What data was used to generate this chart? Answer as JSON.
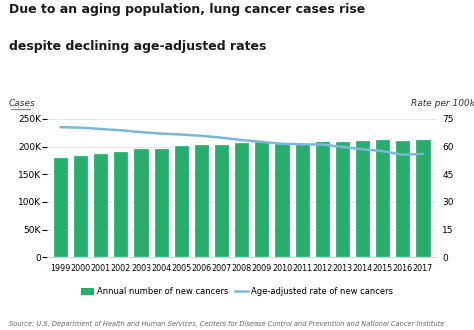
{
  "title_line1": "Due to an aging population, lung cancer cases rise",
  "title_line2": "despite declining age-adjusted rates",
  "years": [
    1999,
    2000,
    2001,
    2002,
    2003,
    2004,
    2005,
    2006,
    2007,
    2008,
    2009,
    2010,
    2011,
    2012,
    2013,
    2014,
    2015,
    2016,
    2017
  ],
  "cases": [
    181000,
    184000,
    189000,
    192000,
    197000,
    198000,
    203000,
    204000,
    205000,
    208000,
    210000,
    207000,
    207000,
    210000,
    210000,
    211000,
    213000,
    212000,
    213000
  ],
  "rates": [
    70.5,
    70.2,
    69.5,
    68.8,
    67.8,
    67.0,
    66.5,
    65.8,
    64.8,
    63.5,
    62.5,
    61.5,
    61.2,
    61.0,
    59.8,
    58.5,
    57.5,
    55.5,
    56.0
  ],
  "bar_color": "#27ae6e",
  "line_color": "#7ab8d4",
  "left_ylabel": "Cases",
  "right_ylabel": "Rate per 100k",
  "left_yticks": [
    0,
    50000,
    100000,
    150000,
    200000,
    250000
  ],
  "left_ytick_labels": [
    "0",
    "50K",
    "100K",
    "150K",
    "200K",
    "250K"
  ],
  "right_yticks": [
    0,
    15,
    30,
    45,
    60,
    75
  ],
  "right_ytick_labels": [
    "0",
    "15",
    "30",
    "45",
    "60",
    "75"
  ],
  "source": "Source: U.S. Department of Health and Human Services, Centers for Disease Control and Prevention and National Cancer Institute",
  "legend_bar": "Annual number of new cancers",
  "legend_line": "Age-adjusted rate of new cancers"
}
